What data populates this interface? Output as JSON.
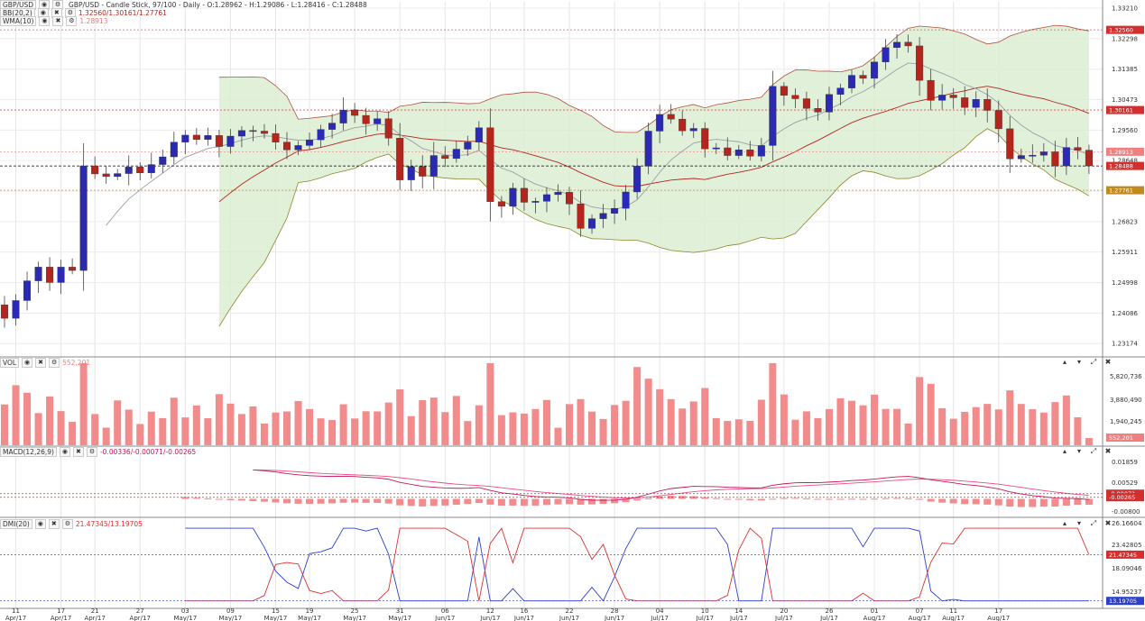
{
  "instrument": "GBP/USD",
  "headers": {
    "main": "GBP/USD - Candle Stick, 97/100 - Daily - O:1.28962 - H:1.29086 - L:1.28416 - C:1.28488",
    "bb": "BB(20,2)",
    "bb_values": "1.32560/1.30161/1.27761",
    "wma": "WMA(10)",
    "wma_value": "1.28913",
    "vol": "VOL",
    "vol_value": "552,201",
    "macd": "MACD(12,26,9)",
    "macd_values": "-0.00336/-0.00071/-0.00265",
    "dmi": "DMI(20)",
    "dmi_values": "21.47345/13.19705"
  },
  "price_axis": {
    "ticks": [
      "1.33210",
      "1.32298",
      "1.31385",
      "1.30473",
      "1.29560",
      "1.28648",
      "1.27735",
      "1.26823",
      "1.25911",
      "1.24998",
      "1.24086",
      "1.23174"
    ],
    "tags": [
      {
        "text": "1.32560",
        "color": "#d32f2f",
        "value": 1.3256
      },
      {
        "text": "1.30161",
        "color": "#d32f2f",
        "value": 1.30161
      },
      {
        "text": "1.28913",
        "color": "#f08080",
        "value": 1.28913
      },
      {
        "text": "1.28488",
        "color": "#d32f2f",
        "value": 1.28488
      },
      {
        "text": "1.27761",
        "color": "#c08a1e",
        "value": 1.27761
      }
    ]
  },
  "vol_axis": {
    "ticks": [
      "5,820,736",
      "3,880,490",
      "1,940,245"
    ],
    "tag": "552,201"
  },
  "macd_axis": {
    "ticks": [
      "0.01859",
      "0.00529",
      "-0.00800"
    ],
    "tags": [
      "-0.00071",
      "-0.00265"
    ]
  },
  "dmi_axis": {
    "ticks": [
      "26.16604",
      "23.42805",
      "18.09046",
      "14.95237"
    ],
    "tags": [
      "21.47345",
      "13.19705"
    ]
  },
  "x_axis": [
    {
      "d": "11",
      "m": "Apr/17"
    },
    {
      "d": "17",
      "m": "Apr/17"
    },
    {
      "d": "21",
      "m": "Apr/17"
    },
    {
      "d": "27",
      "m": "Apr/17"
    },
    {
      "d": "03",
      "m": "May/17"
    },
    {
      "d": "09",
      "m": "May/17"
    },
    {
      "d": "15",
      "m": "May/17"
    },
    {
      "d": "19",
      "m": "May/17"
    },
    {
      "d": "25",
      "m": "May/17"
    },
    {
      "d": "31",
      "m": "May/17"
    },
    {
      "d": "06",
      "m": "Jun/17"
    },
    {
      "d": "12",
      "m": "Jun/17"
    },
    {
      "d": "16",
      "m": "Jun/17"
    },
    {
      "d": "22",
      "m": "Jun/17"
    },
    {
      "d": "28",
      "m": "Jun/17"
    },
    {
      "d": "04",
      "m": "Jul/17"
    },
    {
      "d": "10",
      "m": "Jul/17"
    },
    {
      "d": "14",
      "m": "Jul/17"
    },
    {
      "d": "20",
      "m": "Jul/17"
    },
    {
      "d": "26",
      "m": "Jul/17"
    },
    {
      "d": "01",
      "m": "Aug/17"
    },
    {
      "d": "07",
      "m": "Aug/17"
    },
    {
      "d": "11",
      "m": "Aug/17"
    },
    {
      "d": "17",
      "m": "Aug/17"
    }
  ],
  "chart_data": {
    "type": "candlestick",
    "timeframe": "Daily",
    "ylim": [
      1.228,
      1.334
    ],
    "colors": {
      "up": "#2a2ab5",
      "down": "#b3261e",
      "bb_fill": "#dcedd2",
      "volume": "#f28b8b",
      "dmi_plus": "#e03030",
      "dmi_minus": "#2b3fd1",
      "macd": "#c2185b",
      "signal": "#e91e63"
    },
    "closes": [
      1.2393,
      1.2446,
      1.2505,
      1.2546,
      1.25,
      1.2546,
      1.2536,
      1.2849,
      1.2825,
      1.2817,
      1.2826,
      1.2846,
      1.2828,
      1.2853,
      1.2876,
      1.292,
      1.2941,
      1.2928,
      1.294,
      1.2907,
      1.2938,
      1.2955,
      1.2953,
      1.2946,
      1.292,
      1.2897,
      1.291,
      1.2927,
      1.2958,
      1.2977,
      1.3016,
      1.3,
      1.2975,
      1.299,
      1.2932,
      1.2807,
      1.2847,
      1.2818,
      1.288,
      1.2871,
      1.2899,
      1.292,
      1.2963,
      1.2742,
      1.2728,
      1.2782,
      1.274,
      1.2743,
      1.2763,
      1.277,
      1.2735,
      1.2662,
      1.2691,
      1.2707,
      1.2722,
      1.2771,
      1.2848,
      1.2953,
      1.3003,
      1.2989,
      1.2954,
      1.2961,
      1.29,
      1.2903,
      1.288,
      1.2897,
      1.2878,
      1.291,
      1.3087,
      1.306,
      1.305,
      1.3021,
      1.301,
      1.3063,
      1.3082,
      1.312,
      1.3111,
      1.316,
      1.3203,
      1.3219,
      1.3208,
      1.3105,
      1.3045,
      1.3061,
      1.3053,
      1.3024,
      1.3048,
      1.3015,
      1.296,
      1.287,
      1.288,
      1.2881,
      1.2891,
      1.2849,
      1.2904,
      1.2896,
      1.2849
    ],
    "bollinger": {
      "period": 20,
      "dev": 2,
      "upper_last": 1.3256,
      "middle_last": 1.30161,
      "lower_last": 1.27761
    },
    "wma": {
      "period": 10,
      "last": 1.28913
    },
    "volume_last": 552201,
    "volume_ylim": [
      0,
      6500000
    ],
    "macd": {
      "fast": 12,
      "slow": 26,
      "signal": 9,
      "macd_last": -0.00336,
      "signal_last": -0.00071,
      "hist_last": -0.00265
    },
    "dmi": {
      "period": 20,
      "plus_last": 21.47345,
      "minus_last": 13.19705
    }
  }
}
